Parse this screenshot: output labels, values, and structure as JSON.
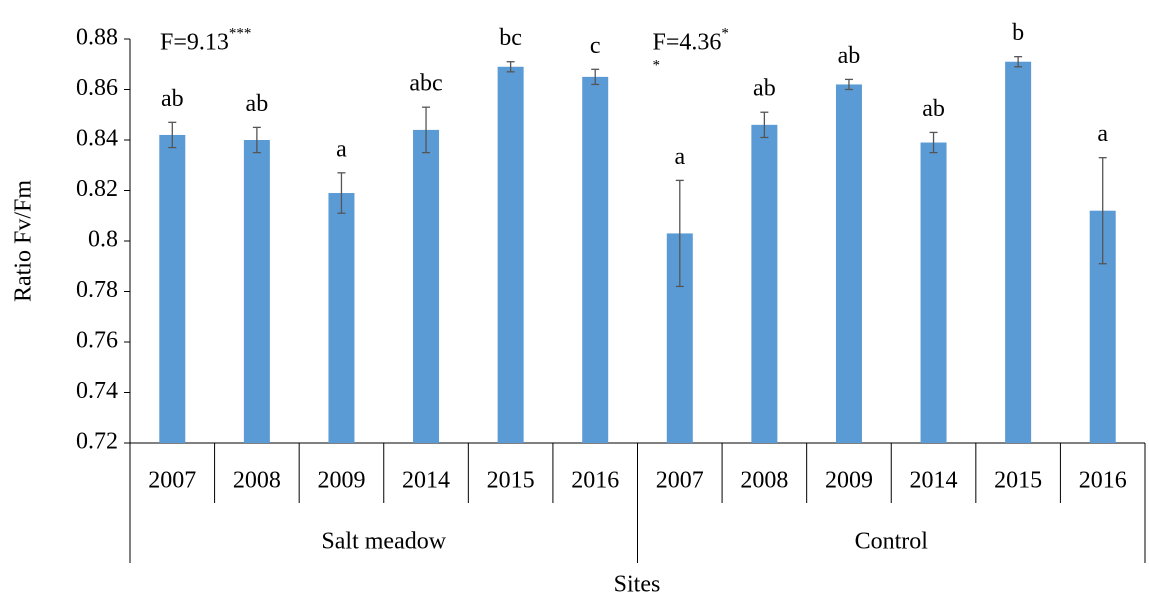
{
  "chart_data": {
    "type": "bar",
    "y_label": "Ratio Fv/Fm",
    "x_label": "Sites",
    "color": "#5b9bd5",
    "ylim": [
      0.72,
      0.88
    ],
    "yticks": [
      0.72,
      0.74,
      0.76,
      0.78,
      0.8,
      0.82,
      0.84,
      0.86,
      0.88
    ],
    "groups": [
      {
        "name": "Salt meadow",
        "categories": [
          "2007",
          "2008",
          "2009",
          "2014",
          "2015",
          "2016"
        ],
        "values": [
          0.842,
          0.84,
          0.819,
          0.844,
          0.869,
          0.865
        ],
        "errors": [
          0.005,
          0.005,
          0.008,
          0.009,
          0.002,
          0.003
        ],
        "letters": [
          "ab",
          "ab",
          "a",
          "abc",
          "bc",
          "c"
        ],
        "annotation": {
          "text": "F=9.13",
          "sup": "***"
        }
      },
      {
        "name": "Control",
        "categories": [
          "2007",
          "2008",
          "2009",
          "2014",
          "2015",
          "2016"
        ],
        "values": [
          0.803,
          0.846,
          0.862,
          0.839,
          0.871,
          0.812
        ],
        "errors": [
          0.021,
          0.005,
          0.002,
          0.004,
          0.002,
          0.021
        ],
        "letters": [
          "a",
          "ab",
          "ab",
          "ab",
          "b",
          "a"
        ],
        "annotation": {
          "text": "F=4.36",
          "sup": "*",
          "extra": "*"
        }
      }
    ]
  }
}
